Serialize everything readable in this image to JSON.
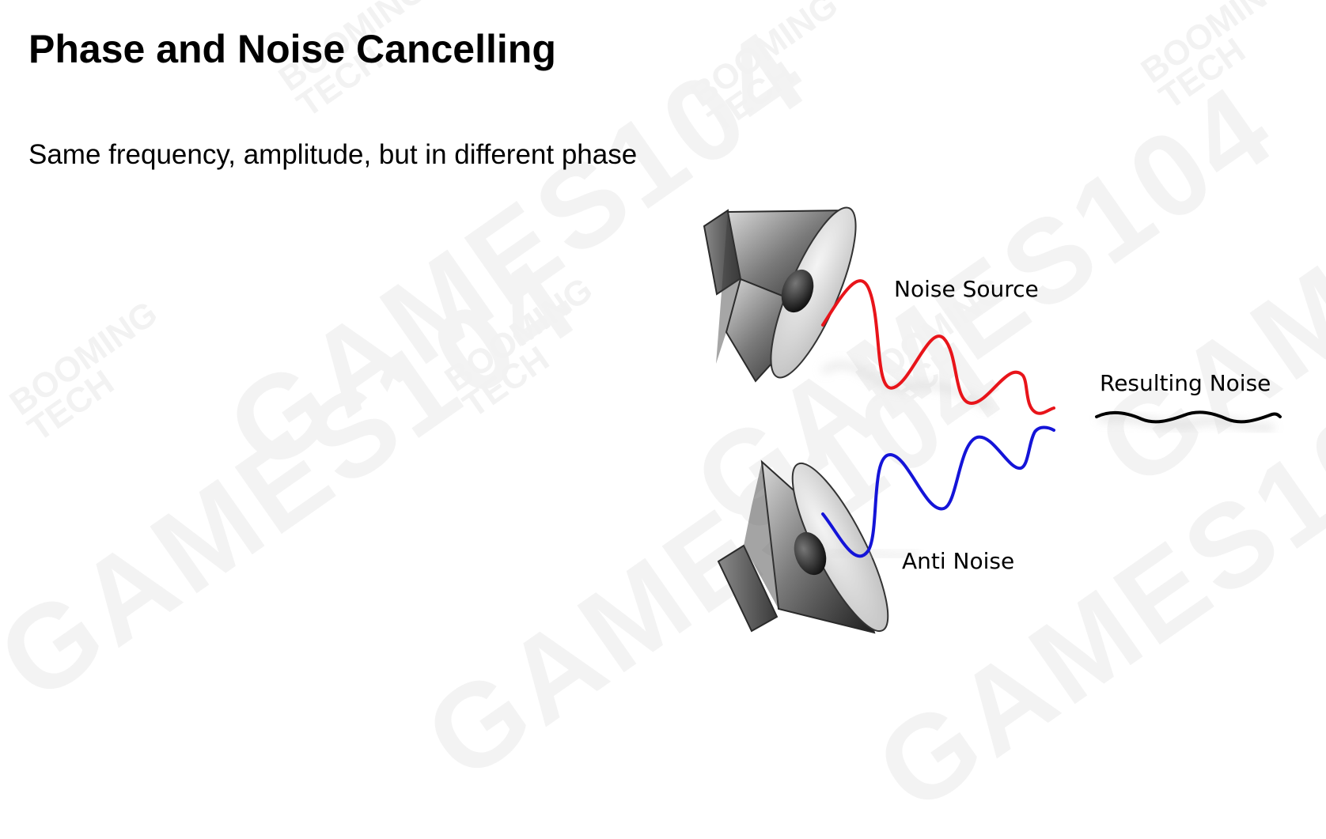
{
  "slide": {
    "title": "Phase and Noise Cancelling",
    "subtitle": "Same frequency, amplitude, but in different phase"
  },
  "diagram": {
    "labels": {
      "noise_source": "Noise Source",
      "resulting_noise": "Resulting Noise",
      "anti_noise": "Anti Noise"
    },
    "colors": {
      "noise_wave": "#e8141a",
      "anti_noise_wave": "#1414d8",
      "resulting_wave": "#000000"
    }
  },
  "watermark": {
    "main_text": "GAMES104",
    "brand_line1": "BOOMING",
    "brand_line2": "TECH"
  }
}
